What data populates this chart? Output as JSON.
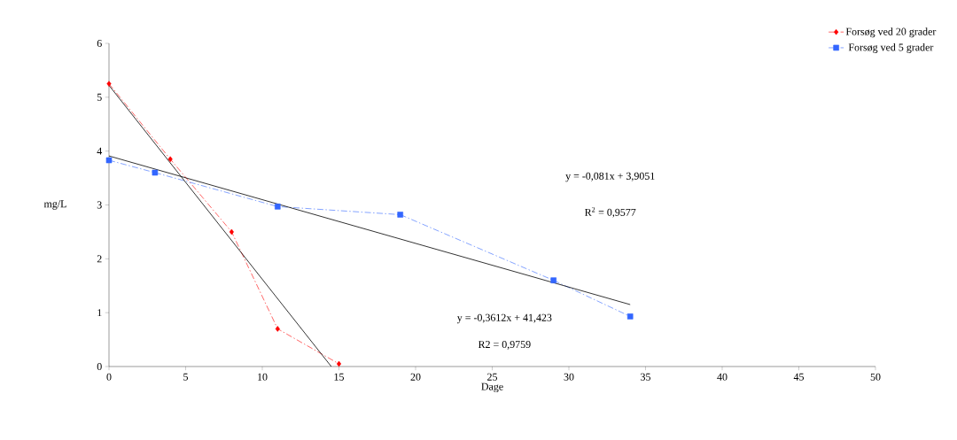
{
  "chart_data": {
    "type": "line",
    "xlabel": "Dage",
    "ylabel": "mg/L",
    "xlim": [
      0,
      50
    ],
    "xticks": [
      0,
      5,
      10,
      15,
      20,
      25,
      30,
      35,
      40,
      45,
      50
    ],
    "ylim": [
      0,
      6
    ],
    "yticks": [
      0,
      1,
      2,
      3,
      4,
      5,
      6
    ],
    "legend": "top right",
    "grid": false,
    "series": [
      {
        "name": "Forsøg ved 20 grader",
        "color": "#ff0000",
        "marker": "diamond",
        "line_style": "dashed",
        "x": [
          0,
          4,
          8,
          11,
          15
        ],
        "values": [
          5.25,
          3.85,
          2.5,
          0.7,
          0.05
        ]
      },
      {
        "name": "Forsøg ved 5 grader",
        "color": "#3366ff",
        "marker": "square",
        "line_style": "dashed",
        "x": [
          0,
          3,
          11,
          19,
          29,
          34
        ],
        "values": [
          3.83,
          3.6,
          2.97,
          2.82,
          1.6,
          0.93
        ]
      },
      {
        "color": "#000000",
        "marker": "none",
        "line_style": "solid",
        "x": [
          0,
          34
        ],
        "values": [
          3.91,
          1.15
        ]
      },
      {
        "color": "#000000",
        "marker": "none",
        "line_style": "solid",
        "x": [
          0,
          14.5
        ],
        "values": [
          5.22,
          0
        ]
      }
    ],
    "annotations": [
      "y = -0,081x + 3,9051",
      "R$^{2}$ = 0,9577",
      "y = -0,3612x + 41,423",
      "R2 = 0,9759"
    ]
  }
}
